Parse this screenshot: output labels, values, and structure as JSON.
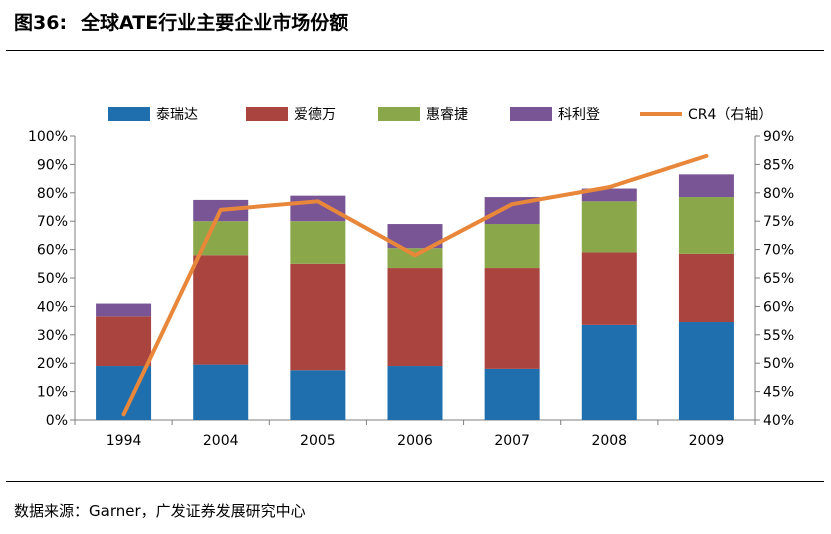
{
  "header": {
    "figure_number": "图36:",
    "title": "全球ATE行业主要企业市场份额"
  },
  "footer": {
    "source": "数据来源：Garner，广发证券发展研究中心"
  },
  "chart_data": {
    "type": "bar",
    "stacked": true,
    "categories": [
      "1994",
      "2004",
      "2005",
      "2006",
      "2007",
      "2008",
      "2009"
    ],
    "series": [
      {
        "name": "泰瑞达",
        "color": "#1f6faf",
        "values": [
          19,
          19.5,
          17.5,
          19,
          18,
          33.5,
          34.5
        ]
      },
      {
        "name": "爱德万",
        "color": "#a9443f",
        "values": [
          17.5,
          38.5,
          37.5,
          34.5,
          35.5,
          25.5,
          24
        ]
      },
      {
        "name": "惠睿捷",
        "color": "#8aa74a",
        "values": [
          0,
          12,
          15,
          7,
          15.5,
          18,
          20
        ]
      },
      {
        "name": "科利登",
        "color": "#7a5596",
        "values": [
          4.5,
          7.5,
          9,
          8.5,
          9.5,
          4.5,
          8
        ]
      }
    ],
    "line_series": {
      "name": "CR4（右轴）",
      "color": "#e8873a",
      "axis": "right",
      "values": [
        41,
        77,
        78.5,
        69,
        78,
        81,
        86.5
      ]
    },
    "y_left": {
      "min": 0,
      "max": 100,
      "step": 10,
      "ticks": [
        "0%",
        "10%",
        "20%",
        "30%",
        "40%",
        "50%",
        "60%",
        "70%",
        "80%",
        "90%",
        "100%"
      ]
    },
    "y_right": {
      "min": 40,
      "max": 90,
      "step": 5,
      "ticks": [
        "40%",
        "45%",
        "50%",
        "55%",
        "60%",
        "65%",
        "70%",
        "75%",
        "80%",
        "85%",
        "90%"
      ]
    },
    "legend": "top",
    "grid": false
  }
}
